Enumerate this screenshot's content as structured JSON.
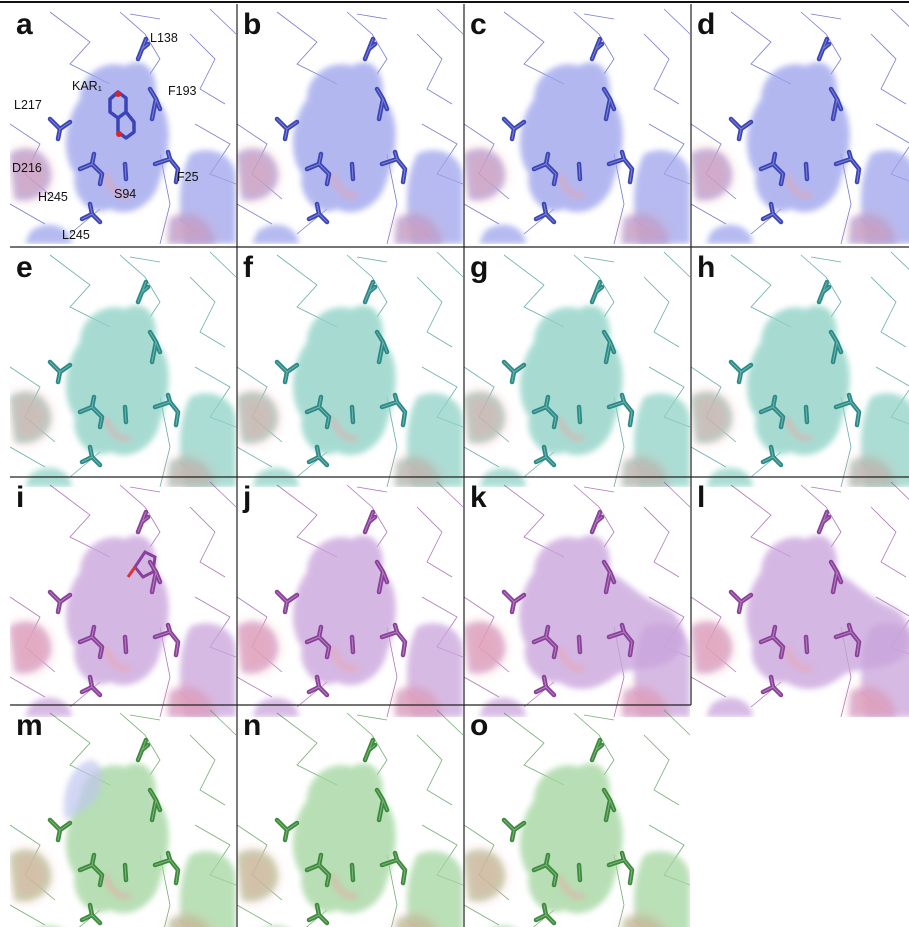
{
  "figure": {
    "panels": [
      {
        "letter": "a",
        "color": "#3a44b8",
        "surface": "#9ea4ec",
        "ligand": true
      },
      {
        "letter": "b",
        "color": "#3a44b8",
        "surface": "#9ea4ec"
      },
      {
        "letter": "c",
        "color": "#3a44b8",
        "surface": "#9ea4ec"
      },
      {
        "letter": "d",
        "color": "#3a44b8",
        "surface": "#9ea4ec"
      },
      {
        "letter": "e",
        "color": "#2a8a86",
        "surface": "#8fd2c6"
      },
      {
        "letter": "f",
        "color": "#2a8a86",
        "surface": "#8fd2c6"
      },
      {
        "letter": "g",
        "color": "#2a8a86",
        "surface": "#8fd2c6"
      },
      {
        "letter": "h",
        "color": "#2a8a86",
        "surface": "#8fd2c6"
      },
      {
        "letter": "i",
        "color": "#8a3f9a",
        "surface": "#c9a4dc",
        "variant": "tyr"
      },
      {
        "letter": "j",
        "color": "#8a3f9a",
        "surface": "#c9a4dc"
      },
      {
        "letter": "k",
        "color": "#8a3f9a",
        "surface": "#c9a4dc",
        "variant": "wide"
      },
      {
        "letter": "l",
        "color": "#8a3f9a",
        "surface": "#c9a4dc",
        "variant": "wide"
      },
      {
        "letter": "m",
        "color": "#3c8a3c",
        "surface": "#a4d6a0",
        "variant": "loop"
      },
      {
        "letter": "n",
        "color": "#3c8a3c",
        "surface": "#a4d6a0"
      },
      {
        "letter": "o",
        "color": "#3c8a3c",
        "surface": "#a4d6a0"
      }
    ],
    "labels": {
      "L138": "L138",
      "KAR1": "KAR₁",
      "F193": "F193",
      "L217": "L217",
      "D216": "D216",
      "H245": "H245",
      "S94": "S94",
      "F25": "F25",
      "L245": "L245"
    }
  }
}
